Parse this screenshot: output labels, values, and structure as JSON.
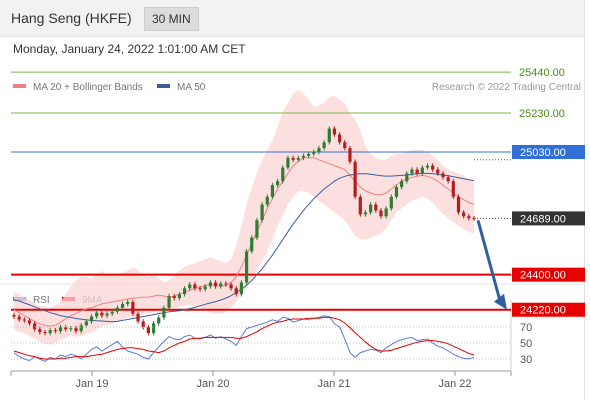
{
  "header": {
    "title": "Hang Seng (HKFE)",
    "timeframe": "30 MIN"
  },
  "datetime": "Monday, January 24, 2022 1:01:00 AM CET",
  "colors": {
    "accent_blue": "#2f6fd6",
    "support_red": "#e60000",
    "resistance_green": "#7ab648",
    "bollinger_fill": "#fbd5d5",
    "ma20": "#f08080",
    "ma50": "#3a5f9c",
    "rsi": "#5b7fd6",
    "rsi_ma": "#e60000",
    "current_price_bg": "#333333"
  },
  "chart_data": [
    {
      "type": "candlestick",
      "legend": [
        {
          "label": "MA 20 + Bollinger Bands",
          "color": "#f08080"
        },
        {
          "label": "MA 50",
          "color": "#3a5f9c"
        }
      ],
      "watermark": "Research © 2022 Trading Central",
      "xlabels": [
        "Jan 19",
        "Jan 20",
        "Jan 21",
        "Jan 22"
      ],
      "ylim": [
        24100,
        25560
      ],
      "levels": [
        {
          "value": 25440.0,
          "label": "25440.00",
          "role": "resistance"
        },
        {
          "value": 25230.0,
          "label": "25230.00",
          "role": "resistance"
        },
        {
          "value": 25030.0,
          "label": "25030.00",
          "role": "pivot"
        },
        {
          "value": 24689.0,
          "label": "24689.00",
          "role": "current"
        },
        {
          "value": 24400.0,
          "label": "24400.00",
          "role": "support"
        },
        {
          "value": 24220.0,
          "label": "24220.00",
          "role": "support"
        }
      ],
      "close": [
        24185,
        24170,
        24165,
        24150,
        24120,
        24105,
        24100,
        24115,
        24110,
        24130,
        24120,
        24125,
        24110,
        24140,
        24160,
        24185,
        24205,
        24190,
        24200,
        24210,
        24230,
        24250,
        24260,
        24200,
        24160,
        24130,
        24100,
        24150,
        24180,
        24230,
        24290,
        24280,
        24300,
        24330,
        24350,
        24330,
        24325,
        24340,
        24360,
        24340,
        24355,
        24350,
        24330,
        24300,
        24360,
        24520,
        24590,
        24680,
        24760,
        24800,
        24860,
        24880,
        24950,
        25000,
        24990,
        25000,
        25010,
        25020,
        25030,
        25050,
        25080,
        25150,
        25120,
        25080,
        25050,
        24980,
        24800,
        24710,
        24720,
        24760,
        24730,
        24700,
        24740,
        24800,
        24850,
        24880,
        24920,
        24940,
        24920,
        24950,
        24960,
        24940,
        24920,
        24900,
        24880,
        24800,
        24720,
        24700,
        24690,
        24689
      ],
      "bb_upper": [
        24310,
        24300,
        24285,
        24270,
        24250,
        24240,
        24235,
        24230,
        24240,
        24260,
        24300,
        24340,
        24370,
        24390,
        24390,
        24380,
        24400,
        24420,
        24400,
        24400,
        24405,
        24410,
        24420,
        24440,
        24420,
        24400,
        24390,
        24400,
        24380,
        24360,
        24370,
        24400,
        24420,
        24440,
        24450,
        24460,
        24470,
        24480,
        24490,
        24480,
        24470,
        24460,
        24480,
        24550,
        24650,
        24760,
        24850,
        24920,
        24990,
        25040,
        25090,
        25160,
        25240,
        25280,
        25330,
        25350,
        25330,
        25300,
        25260,
        25270,
        25280,
        25310,
        25320,
        25300,
        25280,
        25230,
        25200,
        25140,
        25060,
        25020,
        25000,
        24990,
        24990,
        25010,
        25020,
        25020,
        25030,
        25040,
        25040,
        25040,
        25030,
        25010,
        24990,
        24960,
        24940,
        24930,
        24920,
        24910,
        24890,
        24880
      ],
      "bb_lower": [
        24120,
        24110,
        24100,
        24085,
        24070,
        24055,
        24045,
        24040,
        24050,
        24065,
        24075,
        24090,
        24080,
        24085,
        24095,
        24105,
        24120,
        24135,
        24140,
        24150,
        24160,
        24170,
        24180,
        24180,
        24190,
        24200,
        24200,
        24205,
        24215,
        24220,
        24225,
        24230,
        24235,
        24240,
        24245,
        24240,
        24230,
        24220,
        24205,
        24200,
        24200,
        24210,
        24230,
        24260,
        24300,
        24340,
        24380,
        24420,
        24470,
        24520,
        24580,
        24650,
        24700,
        24760,
        24800,
        24830,
        24830,
        24820,
        24800,
        24780,
        24760,
        24740,
        24720,
        24700,
        24680,
        24640,
        24600,
        24580,
        24580,
        24590,
        24600,
        24610,
        24640,
        24680,
        24720,
        24740,
        24760,
        24780,
        24790,
        24800,
        24790,
        24770,
        24740,
        24710,
        24690,
        24670,
        24650,
        24635,
        24620,
        24610
      ],
      "ma20": [
        24220,
        24205,
        24190,
        24175,
        24160,
        24148,
        24140,
        24135,
        24140,
        24155,
        24175,
        24190,
        24200,
        24215,
        24225,
        24230,
        24240,
        24250,
        24255,
        24260,
        24265,
        24270,
        24275,
        24280,
        24282,
        24285,
        24285,
        24290,
        24295,
        24290,
        24285,
        24290,
        24300,
        24310,
        24320,
        24330,
        24335,
        24345,
        24350,
        24345,
        24340,
        24345,
        24360,
        24390,
        24440,
        24500,
        24560,
        24620,
        24680,
        24740,
        24790,
        24840,
        24880,
        24920,
        24960,
        24980,
        25000,
        25000,
        25000,
        24990,
        24980,
        24970,
        24960,
        24950,
        24940,
        24910,
        24880,
        24850,
        24830,
        24820,
        24810,
        24810,
        24820,
        24840,
        24860,
        24880,
        24890,
        24900,
        24905,
        24910,
        24905,
        24895,
        24880,
        24860,
        24840,
        24820,
        24800,
        24785,
        24770,
        24760
      ],
      "ma50": [
        24270,
        24265,
        24255,
        24245,
        24235,
        24225,
        24215,
        24205,
        24198,
        24190,
        24185,
        24180,
        24175,
        24172,
        24168,
        24165,
        24163,
        24162,
        24160,
        24158,
        24160,
        24165,
        24170,
        24175,
        24180,
        24185,
        24190,
        24195,
        24200,
        24205,
        24210,
        24212,
        24215,
        24220,
        24226,
        24232,
        24240,
        24248,
        24255,
        24262,
        24270,
        24280,
        24292,
        24308,
        24325,
        24345,
        24370,
        24400,
        24430,
        24465,
        24500,
        24540,
        24580,
        24620,
        24660,
        24695,
        24730,
        24760,
        24790,
        24815,
        24840,
        24860,
        24880,
        24895,
        24905,
        24912,
        24916,
        24918,
        24918,
        24916,
        24912,
        24908,
        24906,
        24906,
        24908,
        24910,
        24912,
        24915,
        24918,
        24920,
        24920,
        24919,
        24916,
        24912,
        24908,
        24903,
        24898,
        24893,
        24888,
        24883
      ]
    },
    {
      "type": "line",
      "legend": [
        {
          "label": "RSI",
          "color": "#5b7fd6"
        },
        {
          "label": "9MA",
          "color": "#e60000"
        }
      ],
      "ylim": [
        20,
        85
      ],
      "yticks": [
        70,
        50,
        30
      ],
      "series": [
        {
          "name": "RSI",
          "values": [
            38,
            33,
            30,
            28,
            33,
            30,
            27,
            32,
            30,
            35,
            33,
            36,
            34,
            30,
            36,
            42,
            45,
            40,
            44,
            48,
            52,
            45,
            40,
            38,
            36,
            32,
            30,
            38,
            45,
            52,
            58,
            55,
            54,
            58,
            60,
            56,
            55,
            57,
            60,
            56,
            58,
            55,
            52,
            47,
            58,
            68,
            70,
            72,
            74,
            76,
            79,
            77,
            82,
            81,
            76,
            78,
            80,
            79,
            81,
            82,
            84,
            83,
            74,
            70,
            55,
            38,
            32,
            38,
            40,
            42,
            41,
            38,
            44,
            48,
            52,
            54,
            56,
            57,
            53,
            54,
            55,
            50,
            46,
            44,
            40,
            36,
            33,
            31,
            30,
            32
          ]
        },
        {
          "name": "9MA",
          "values": [
            40,
            38,
            36,
            34,
            33,
            31,
            30,
            30,
            30,
            31,
            31,
            32,
            33,
            33,
            33,
            34,
            35,
            36,
            38,
            40,
            42,
            43,
            44,
            44,
            43,
            42,
            40,
            39,
            38,
            40,
            44,
            47,
            50,
            52,
            55,
            56,
            56,
            57,
            57,
            57,
            57,
            57,
            57,
            56,
            56,
            58,
            61,
            64,
            68,
            71,
            74,
            76,
            77,
            79,
            80,
            80,
            80,
            81,
            81,
            81,
            82,
            82,
            81,
            79,
            75,
            69,
            63,
            57,
            51,
            46,
            42,
            40,
            40,
            41,
            43,
            45,
            47,
            49,
            51,
            52,
            53,
            53,
            52,
            51,
            49,
            46,
            43,
            40,
            37,
            35
          ]
        }
      ]
    }
  ]
}
